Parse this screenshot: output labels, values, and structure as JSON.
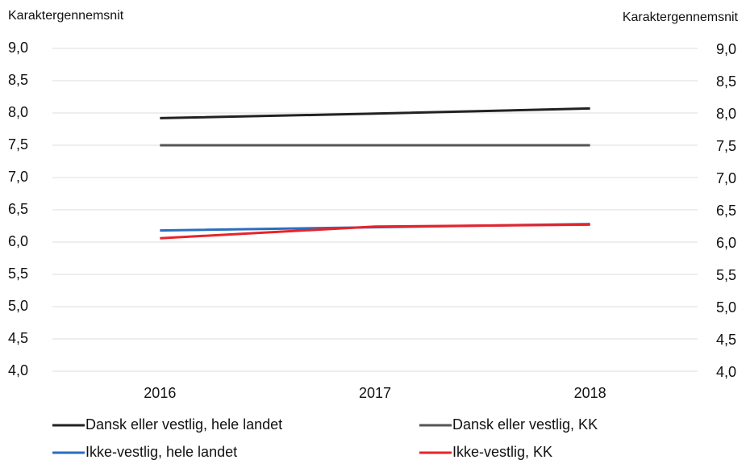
{
  "chart_data": {
    "type": "line",
    "y_label": "Karaktergennemsnit",
    "y2_label": "Karaktergennemsnit",
    "categories": [
      "2016",
      "2017",
      "2018"
    ],
    "series": [
      {
        "name": "Dansk eller vestlig, hele landet",
        "color": "#222222",
        "values": [
          7.92,
          7.99,
          8.07
        ]
      },
      {
        "name": "Dansk eller vestlig, KK",
        "color": "#555555",
        "values": [
          7.5,
          7.5,
          7.5
        ]
      },
      {
        "name": "Ikke-vestlig, hele landet",
        "color": "#2a6fc0",
        "values": [
          6.18,
          6.23,
          6.28
        ]
      },
      {
        "name": "Ikke-vestlig, KK",
        "color": "#e8232a",
        "values": [
          6.06,
          6.24,
          6.27
        ]
      }
    ],
    "ylim": [
      4,
      9
    ],
    "yticks": [
      {
        "value": 4,
        "label": "4,0"
      },
      {
        "value": 4.5,
        "label": "4,5"
      },
      {
        "value": 5,
        "label": "5,0"
      },
      {
        "value": 5.5,
        "label": "5,5"
      },
      {
        "value": 6,
        "label": "6,0"
      },
      {
        "value": 6.5,
        "label": "6,5"
      },
      {
        "value": 7,
        "label": "7,0"
      },
      {
        "value": 7.5,
        "label": "7,5"
      },
      {
        "value": 8,
        "label": "8,0"
      },
      {
        "value": 8.5,
        "label": "8,5"
      },
      {
        "value": 9,
        "label": "9,0"
      }
    ],
    "y2lim": [
      4,
      9
    ],
    "y2ticks": [
      {
        "value": 4,
        "label": "4,0"
      },
      {
        "value": 4.5,
        "label": "4,5"
      },
      {
        "value": 5,
        "label": "5,0"
      },
      {
        "value": 5.5,
        "label": "5,5"
      },
      {
        "value": 6,
        "label": "6,0"
      },
      {
        "value": 6.5,
        "label": "6,5"
      },
      {
        "value": 7,
        "label": "7,0"
      },
      {
        "value": 7.5,
        "label": "7,5"
      },
      {
        "value": 8,
        "label": "8,0"
      },
      {
        "value": 8.5,
        "label": "8,5"
      },
      {
        "value": 9,
        "label": "9,0"
      }
    ],
    "grid": true
  }
}
